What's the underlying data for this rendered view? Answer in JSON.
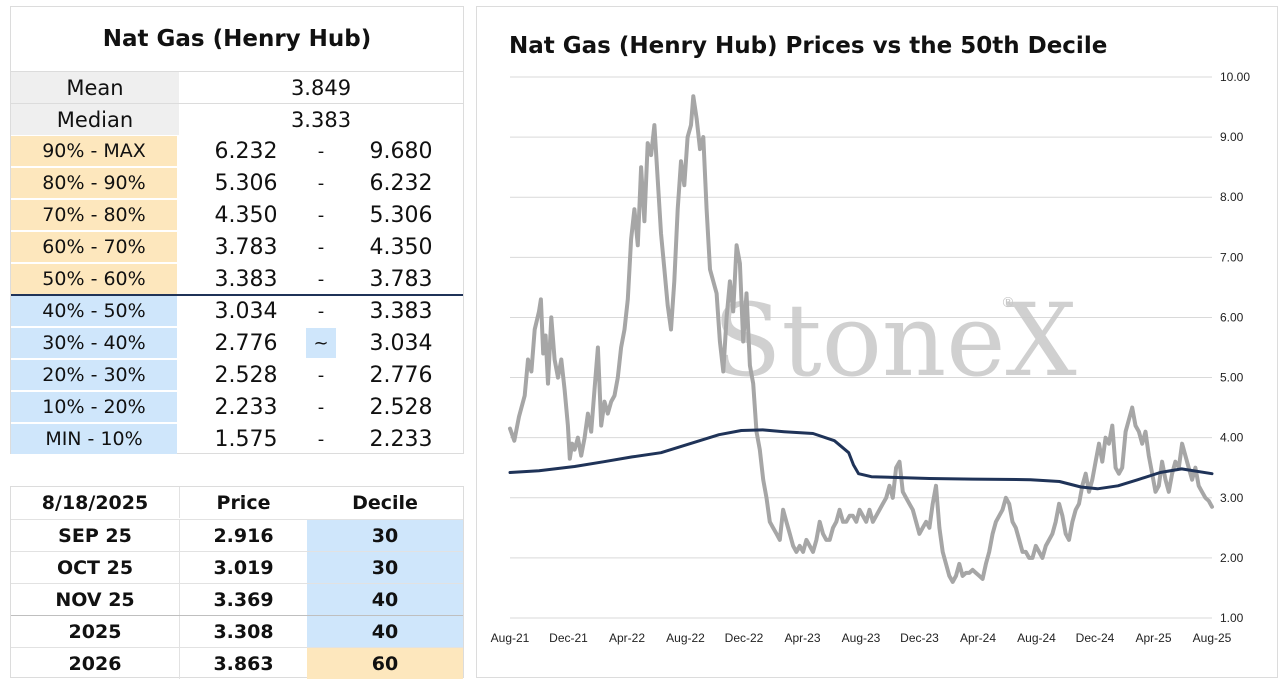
{
  "decile_table": {
    "title": "Nat Gas (Henry Hub)",
    "mean_label": "Mean",
    "mean_value": "3.849",
    "median_label": "Median",
    "median_value": "3.383",
    "ranges": [
      {
        "label": "90% - MAX",
        "low": "6.232",
        "sep": "-",
        "high": "9.680",
        "half": "upper"
      },
      {
        "label": "80% - 90%",
        "low": "5.306",
        "sep": "-",
        "high": "6.232",
        "half": "upper"
      },
      {
        "label": "70% - 80%",
        "low": "4.350",
        "sep": "-",
        "high": "5.306",
        "half": "upper"
      },
      {
        "label": "60% - 70%",
        "low": "3.783",
        "sep": "-",
        "high": "4.350",
        "half": "upper"
      },
      {
        "label": "50% - 60%",
        "low": "3.383",
        "sep": "-",
        "high": "3.783",
        "half": "upper"
      },
      {
        "label": "40% - 50%",
        "low": "3.034",
        "sep": "-",
        "high": "3.383",
        "half": "lower"
      },
      {
        "label": "30% - 40%",
        "low": "2.776",
        "sep": "~",
        "high": "3.034",
        "half": "lower",
        "current": true
      },
      {
        "label": "20% - 30%",
        "low": "2.528",
        "sep": "-",
        "high": "2.776",
        "half": "lower"
      },
      {
        "label": "10% - 20%",
        "low": "2.233",
        "sep": "-",
        "high": "2.528",
        "half": "lower"
      },
      {
        "label": "MIN - 10%",
        "low": "1.575",
        "sep": "-",
        "high": "2.233",
        "half": "lower"
      }
    ]
  },
  "price_table": {
    "headers": [
      "8/18/2025",
      "Price",
      "Decile"
    ],
    "rows": [
      {
        "contract": "SEP 25",
        "price": "2.916",
        "decile": "30",
        "half": "lower"
      },
      {
        "contract": "OCT 25",
        "price": "3.019",
        "decile": "30",
        "half": "lower"
      },
      {
        "contract": "NOV 25",
        "price": "3.369",
        "decile": "40",
        "half": "lower"
      },
      {
        "contract": "2025",
        "price": "3.308",
        "decile": "40",
        "half": "lower"
      },
      {
        "contract": "2026",
        "price": "3.863",
        "decile": "60",
        "half": "upper"
      }
    ]
  },
  "colors": {
    "upper_half": "#fde7bd",
    "lower_half": "#cfe6fb",
    "price_line": "#a6a6a6",
    "decile_line": "#1f3358"
  },
  "chart_data": {
    "type": "line",
    "title": "Nat Gas (Henry Hub) Prices vs the 50th Decile",
    "watermark": "StoneX",
    "x_tick_labels": [
      "Aug-21",
      "Dec-21",
      "Apr-22",
      "Aug-22",
      "Dec-22",
      "Apr-23",
      "Aug-23",
      "Dec-23",
      "Apr-24",
      "Aug-24",
      "Dec-24",
      "Apr-25",
      "Aug-25"
    ],
    "y_tick_labels": [
      "1.00",
      "2.00",
      "3.00",
      "4.00",
      "5.00",
      "6.00",
      "7.00",
      "8.00",
      "9.00",
      "10.00"
    ],
    "ylim": [
      1,
      10
    ],
    "y_axis_side": "right",
    "grid": "horizontal",
    "legend": "none",
    "series": [
      {
        "color": "#a6a6a6",
        "points": [
          [
            "2021-08-01",
            4.15
          ],
          [
            "2021-08-10",
            3.95
          ],
          [
            "2021-08-20",
            4.35
          ],
          [
            "2021-09-01",
            4.7
          ],
          [
            "2021-09-08",
            5.3
          ],
          [
            "2021-09-15",
            5.1
          ],
          [
            "2021-09-22",
            5.8
          ],
          [
            "2021-10-01",
            6.1
          ],
          [
            "2021-10-05",
            6.3
          ],
          [
            "2021-10-10",
            5.4
          ],
          [
            "2021-10-15",
            5.7
          ],
          [
            "2021-10-20",
            4.9
          ],
          [
            "2021-10-27",
            6.0
          ],
          [
            "2021-11-03",
            5.3
          ],
          [
            "2021-11-10",
            5.0
          ],
          [
            "2021-11-17",
            5.3
          ],
          [
            "2021-11-24",
            4.8
          ],
          [
            "2021-12-01",
            4.2
          ],
          [
            "2021-12-05",
            3.65
          ],
          [
            "2021-12-10",
            3.9
          ],
          [
            "2021-12-15",
            3.8
          ],
          [
            "2021-12-22",
            4.0
          ],
          [
            "2021-12-29",
            3.7
          ],
          [
            "2022-01-05",
            4.0
          ],
          [
            "2022-01-12",
            4.4
          ],
          [
            "2022-01-19",
            4.1
          ],
          [
            "2022-01-26",
            4.8
          ],
          [
            "2022-02-02",
            5.5
          ],
          [
            "2022-02-09",
            4.2
          ],
          [
            "2022-02-16",
            4.6
          ],
          [
            "2022-02-23",
            4.4
          ],
          [
            "2022-03-02",
            4.6
          ],
          [
            "2022-03-09",
            4.7
          ],
          [
            "2022-03-16",
            5.0
          ],
          [
            "2022-03-23",
            5.5
          ],
          [
            "2022-03-30",
            5.8
          ],
          [
            "2022-04-06",
            6.3
          ],
          [
            "2022-04-13",
            7.3
          ],
          [
            "2022-04-20",
            7.8
          ],
          [
            "2022-04-27",
            7.2
          ],
          [
            "2022-05-04",
            8.5
          ],
          [
            "2022-05-11",
            7.6
          ],
          [
            "2022-05-18",
            8.9
          ],
          [
            "2022-05-25",
            8.7
          ],
          [
            "2022-06-01",
            9.2
          ],
          [
            "2022-06-08",
            8.3
          ],
          [
            "2022-06-15",
            7.4
          ],
          [
            "2022-06-22",
            6.8
          ],
          [
            "2022-06-29",
            6.2
          ],
          [
            "2022-07-06",
            5.8
          ],
          [
            "2022-07-13",
            6.6
          ],
          [
            "2022-07-20",
            7.8
          ],
          [
            "2022-07-27",
            8.6
          ],
          [
            "2022-08-03",
            8.2
          ],
          [
            "2022-08-10",
            9.0
          ],
          [
            "2022-08-17",
            9.2
          ],
          [
            "2022-08-22",
            9.68
          ],
          [
            "2022-08-29",
            9.3
          ],
          [
            "2022-09-05",
            8.8
          ],
          [
            "2022-09-12",
            9.0
          ],
          [
            "2022-09-19",
            7.8
          ],
          [
            "2022-09-26",
            6.8
          ],
          [
            "2022-10-03",
            6.6
          ],
          [
            "2022-10-10",
            6.4
          ],
          [
            "2022-10-17",
            5.6
          ],
          [
            "2022-10-24",
            5.1
          ],
          [
            "2022-10-31",
            6.0
          ],
          [
            "2022-11-07",
            6.6
          ],
          [
            "2022-11-14",
            6.1
          ],
          [
            "2022-11-21",
            7.2
          ],
          [
            "2022-11-28",
            6.9
          ],
          [
            "2022-12-05",
            5.6
          ],
          [
            "2022-12-12",
            6.4
          ],
          [
            "2022-12-19",
            5.2
          ],
          [
            "2022-12-26",
            4.9
          ],
          [
            "2023-01-02",
            4.1
          ],
          [
            "2023-01-09",
            3.8
          ],
          [
            "2023-01-16",
            3.3
          ],
          [
            "2023-01-23",
            3.0
          ],
          [
            "2023-01-30",
            2.6
          ],
          [
            "2023-02-06",
            2.5
          ],
          [
            "2023-02-13",
            2.4
          ],
          [
            "2023-02-20",
            2.3
          ],
          [
            "2023-02-27",
            2.8
          ],
          [
            "2023-03-06",
            2.6
          ],
          [
            "2023-03-13",
            2.4
          ],
          [
            "2023-03-20",
            2.2
          ],
          [
            "2023-03-27",
            2.1
          ],
          [
            "2023-04-03",
            2.2
          ],
          [
            "2023-04-10",
            2.1
          ],
          [
            "2023-04-17",
            2.3
          ],
          [
            "2023-04-24",
            2.2
          ],
          [
            "2023-05-01",
            2.1
          ],
          [
            "2023-05-08",
            2.3
          ],
          [
            "2023-05-15",
            2.6
          ],
          [
            "2023-05-22",
            2.4
          ],
          [
            "2023-05-29",
            2.3
          ],
          [
            "2023-06-05",
            2.3
          ],
          [
            "2023-06-12",
            2.5
          ],
          [
            "2023-06-19",
            2.6
          ],
          [
            "2023-06-26",
            2.8
          ],
          [
            "2023-07-03",
            2.6
          ],
          [
            "2023-07-10",
            2.6
          ],
          [
            "2023-07-17",
            2.7
          ],
          [
            "2023-07-24",
            2.7
          ],
          [
            "2023-07-31",
            2.6
          ],
          [
            "2023-08-07",
            2.8
          ],
          [
            "2023-08-14",
            2.7
          ],
          [
            "2023-08-21",
            2.6
          ],
          [
            "2023-08-28",
            2.8
          ],
          [
            "2023-09-04",
            2.6
          ],
          [
            "2023-09-11",
            2.7
          ],
          [
            "2023-09-18",
            2.8
          ],
          [
            "2023-09-25",
            2.9
          ],
          [
            "2023-10-02",
            3.0
          ],
          [
            "2023-10-09",
            3.2
          ],
          [
            "2023-10-16",
            3.0
          ],
          [
            "2023-10-23",
            3.5
          ],
          [
            "2023-10-30",
            3.6
          ],
          [
            "2023-11-06",
            3.1
          ],
          [
            "2023-11-13",
            3.0
          ],
          [
            "2023-11-20",
            2.9
          ],
          [
            "2023-11-27",
            2.8
          ],
          [
            "2023-12-04",
            2.6
          ],
          [
            "2023-12-11",
            2.4
          ],
          [
            "2023-12-18",
            2.5
          ],
          [
            "2023-12-25",
            2.6
          ],
          [
            "2024-01-01",
            2.5
          ],
          [
            "2024-01-08",
            2.9
          ],
          [
            "2024-01-15",
            3.2
          ],
          [
            "2024-01-22",
            2.5
          ],
          [
            "2024-01-29",
            2.1
          ],
          [
            "2024-02-05",
            1.9
          ],
          [
            "2024-02-12",
            1.7
          ],
          [
            "2024-02-19",
            1.6
          ],
          [
            "2024-02-26",
            1.7
          ],
          [
            "2024-03-04",
            1.9
          ],
          [
            "2024-03-11",
            1.7
          ],
          [
            "2024-03-18",
            1.75
          ],
          [
            "2024-03-25",
            1.75
          ],
          [
            "2024-04-01",
            1.8
          ],
          [
            "2024-04-08",
            1.75
          ],
          [
            "2024-04-15",
            1.7
          ],
          [
            "2024-04-22",
            1.65
          ],
          [
            "2024-04-29",
            1.9
          ],
          [
            "2024-05-06",
            2.1
          ],
          [
            "2024-05-13",
            2.4
          ],
          [
            "2024-05-20",
            2.6
          ],
          [
            "2024-05-27",
            2.7
          ],
          [
            "2024-06-03",
            2.8
          ],
          [
            "2024-06-10",
            3.0
          ],
          [
            "2024-06-17",
            2.9
          ],
          [
            "2024-06-24",
            2.6
          ],
          [
            "2024-07-01",
            2.5
          ],
          [
            "2024-07-08",
            2.3
          ],
          [
            "2024-07-15",
            2.1
          ],
          [
            "2024-07-22",
            2.1
          ],
          [
            "2024-07-29",
            2.0
          ],
          [
            "2024-08-05",
            2.0
          ],
          [
            "2024-08-12",
            2.2
          ],
          [
            "2024-08-19",
            2.1
          ],
          [
            "2024-08-26",
            2.0
          ],
          [
            "2024-09-02",
            2.2
          ],
          [
            "2024-09-09",
            2.3
          ],
          [
            "2024-09-16",
            2.4
          ],
          [
            "2024-09-23",
            2.6
          ],
          [
            "2024-09-30",
            2.9
          ],
          [
            "2024-10-07",
            2.7
          ],
          [
            "2024-10-14",
            2.4
          ],
          [
            "2024-10-21",
            2.3
          ],
          [
            "2024-10-28",
            2.6
          ],
          [
            "2024-11-04",
            2.8
          ],
          [
            "2024-11-11",
            2.9
          ],
          [
            "2024-11-18",
            3.2
          ],
          [
            "2024-11-25",
            3.4
          ],
          [
            "2024-12-02",
            3.1
          ],
          [
            "2024-12-09",
            3.3
          ],
          [
            "2024-12-16",
            3.6
          ],
          [
            "2024-12-23",
            3.9
          ],
          [
            "2024-12-30",
            3.6
          ],
          [
            "2025-01-06",
            4.0
          ],
          [
            "2025-01-13",
            3.9
          ],
          [
            "2025-01-20",
            4.2
          ],
          [
            "2025-01-27",
            3.5
          ],
          [
            "2025-02-03",
            3.4
          ],
          [
            "2025-02-10",
            3.5
          ],
          [
            "2025-02-17",
            4.1
          ],
          [
            "2025-02-24",
            4.3
          ],
          [
            "2025-03-03",
            4.5
          ],
          [
            "2025-03-10",
            4.2
          ],
          [
            "2025-03-17",
            4.1
          ],
          [
            "2025-03-24",
            3.9
          ],
          [
            "2025-03-31",
            4.1
          ],
          [
            "2025-04-07",
            3.7
          ],
          [
            "2025-04-14",
            3.4
          ],
          [
            "2025-04-21",
            3.1
          ],
          [
            "2025-04-28",
            3.2
          ],
          [
            "2025-05-05",
            3.6
          ],
          [
            "2025-05-12",
            3.3
          ],
          [
            "2025-05-19",
            3.1
          ],
          [
            "2025-05-26",
            3.4
          ],
          [
            "2025-06-02",
            3.6
          ],
          [
            "2025-06-09",
            3.5
          ],
          [
            "2025-06-16",
            3.9
          ],
          [
            "2025-06-23",
            3.7
          ],
          [
            "2025-06-30",
            3.5
          ],
          [
            "2025-07-07",
            3.3
          ],
          [
            "2025-07-14",
            3.5
          ],
          [
            "2025-07-21",
            3.2
          ],
          [
            "2025-07-28",
            3.1
          ],
          [
            "2025-08-04",
            3.0
          ],
          [
            "2025-08-11",
            2.95
          ],
          [
            "2025-08-18",
            2.85
          ]
        ]
      },
      {
        "color": "#1f3358",
        "points": [
          [
            "2021-08-01",
            3.42
          ],
          [
            "2021-10-01",
            3.45
          ],
          [
            "2021-12-15",
            3.52
          ],
          [
            "2022-02-15",
            3.6
          ],
          [
            "2022-04-15",
            3.68
          ],
          [
            "2022-06-15",
            3.75
          ],
          [
            "2022-08-15",
            3.9
          ],
          [
            "2022-10-15",
            4.05
          ],
          [
            "2022-12-01",
            4.12
          ],
          [
            "2023-01-15",
            4.13
          ],
          [
            "2023-03-01",
            4.1
          ],
          [
            "2023-05-01",
            4.07
          ],
          [
            "2023-06-15",
            3.95
          ],
          [
            "2023-07-15",
            3.75
          ],
          [
            "2023-07-25",
            3.55
          ],
          [
            "2023-08-05",
            3.4
          ],
          [
            "2023-09-01",
            3.35
          ],
          [
            "2024-01-01",
            3.32
          ],
          [
            "2024-04-01",
            3.31
          ],
          [
            "2024-08-01",
            3.3
          ],
          [
            "2024-10-01",
            3.27
          ],
          [
            "2024-11-15",
            3.18
          ],
          [
            "2024-12-20",
            3.15
          ],
          [
            "2025-02-01",
            3.2
          ],
          [
            "2025-03-15",
            3.3
          ],
          [
            "2025-05-01",
            3.42
          ],
          [
            "2025-06-15",
            3.48
          ],
          [
            "2025-08-18",
            3.4
          ]
        ]
      }
    ]
  }
}
